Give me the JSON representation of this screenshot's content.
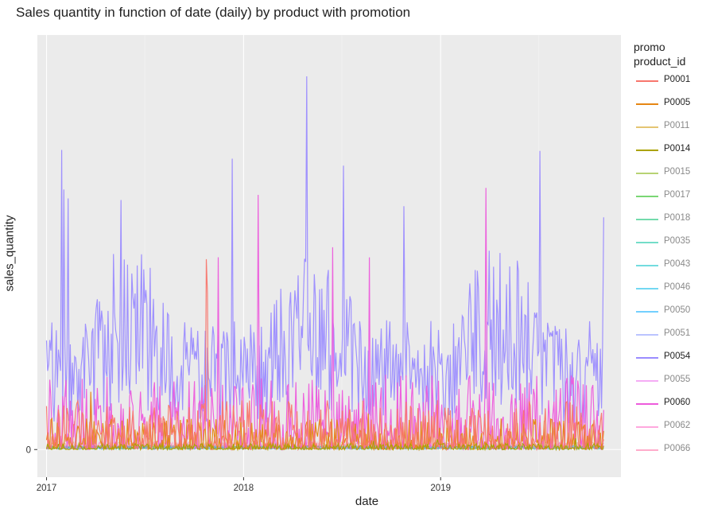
{
  "chart_data": {
    "type": "line",
    "title": "Sales quantity in function of date (daily) by product with promotion",
    "xlabel": "date",
    "ylabel": "sales_quantity",
    "x_ticks": [
      "2017",
      "2018",
      "2019"
    ],
    "y_ticks": [
      "0"
    ],
    "x_range": [
      "2016-12-15",
      "2019-12-01"
    ],
    "y_range": [
      -0.07,
      1.05
    ],
    "y_scale": "relative (only 0 labeled)",
    "legend": {
      "title_line1": "promo",
      "title_line2": "product_id",
      "placement": "right"
    },
    "series": [
      {
        "name": "P0001",
        "color": "#f8766d",
        "active": true,
        "level": 0.08,
        "spike": 0.56
      },
      {
        "name": "P0005",
        "color": "#e68613",
        "active": true,
        "level": 0.05,
        "spike": 0.15
      },
      {
        "name": "P0011",
        "color": "#cd9600",
        "active": false,
        "level": 0.02,
        "spike": 0.03
      },
      {
        "name": "P0014",
        "color": "#aba300",
        "active": true,
        "level": 0.01,
        "spike": 0.03
      },
      {
        "name": "P0015",
        "color": "#7cae00",
        "active": false,
        "level": 0.01,
        "spike": 0.02
      },
      {
        "name": "P0017",
        "color": "#0cb702",
        "active": false,
        "level": 0.01,
        "spike": 0.02
      },
      {
        "name": "P0018",
        "color": "#00be67",
        "active": false,
        "level": 0.01,
        "spike": 0.02
      },
      {
        "name": "P0035",
        "color": "#00c19a",
        "active": false,
        "level": 0.01,
        "spike": 0.02
      },
      {
        "name": "P0043",
        "color": "#00bfc4",
        "active": false,
        "level": 0.01,
        "spike": 0.02
      },
      {
        "name": "P0046",
        "color": "#00b8e7",
        "active": false,
        "level": 0.01,
        "spike": 0.02
      },
      {
        "name": "P0050",
        "color": "#00a9ff",
        "active": false,
        "level": 0.01,
        "spike": 0.02
      },
      {
        "name": "P0051",
        "color": "#8494ff",
        "active": false,
        "level": 0.01,
        "spike": 0.02
      },
      {
        "name": "P0054",
        "color": "#9b8cff",
        "active": true,
        "level": 0.26,
        "spike": 1.0
      },
      {
        "name": "P0055",
        "color": "#ed68ed",
        "active": false,
        "level": 0.02,
        "spike": 0.05
      },
      {
        "name": "P0060",
        "color": "#ed5bdc",
        "active": true,
        "level": 0.12,
        "spike": 0.67
      },
      {
        "name": "P0062",
        "color": "#ff61c3",
        "active": false,
        "level": 0.02,
        "spike": 0.05
      },
      {
        "name": "P0066",
        "color": "#ff68a1",
        "active": false,
        "level": 0.02,
        "spike": 0.05
      }
    ]
  }
}
